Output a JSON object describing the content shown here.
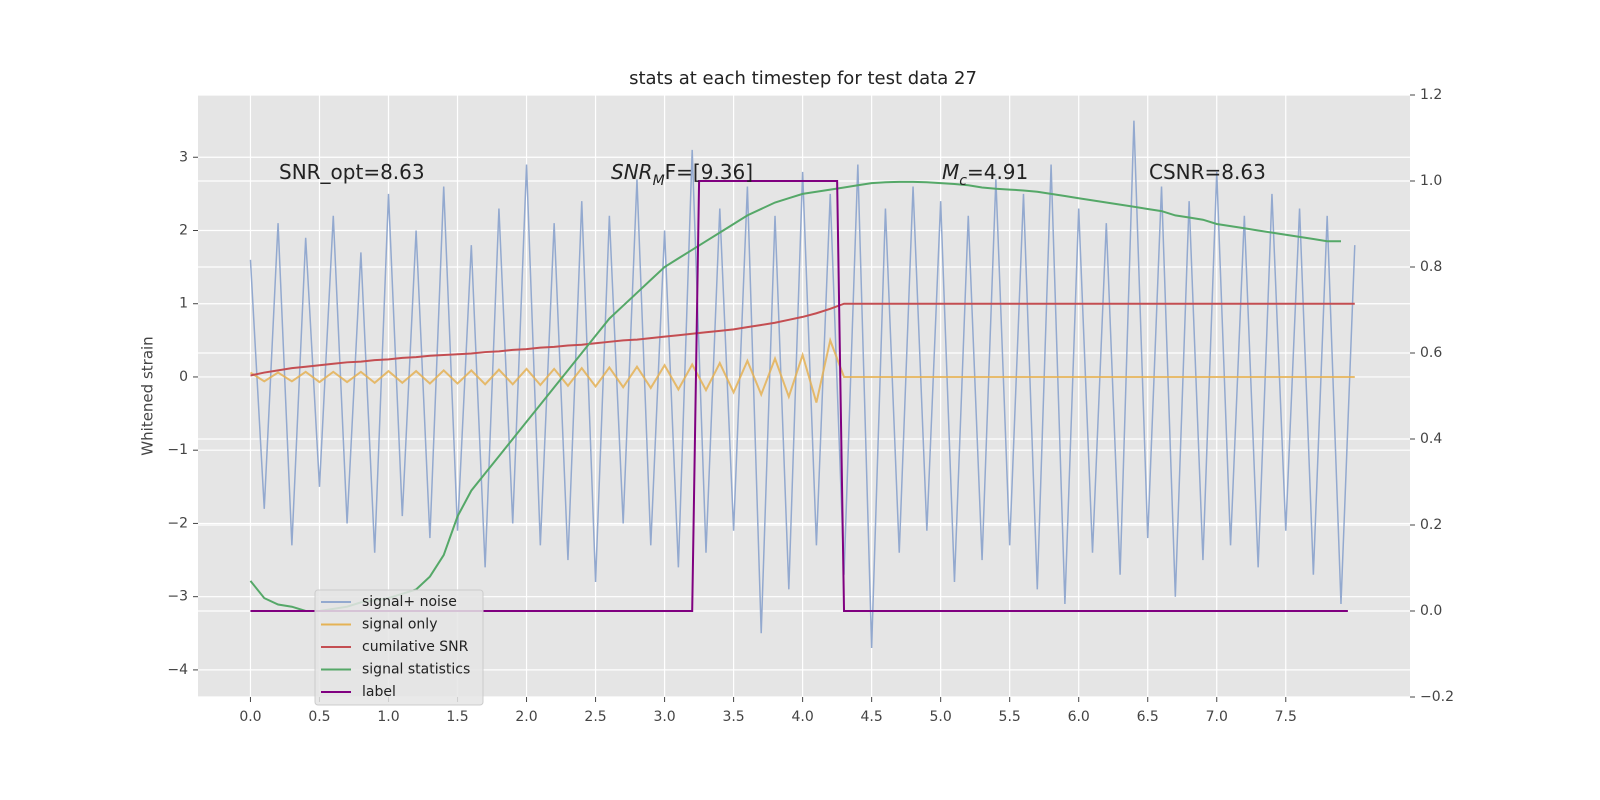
{
  "chart_data": {
    "type": "line",
    "title": "stats at each timestep for test data 27",
    "ylabel": "Whitened strain",
    "annotations": [
      [
        "SNR_opt=8.63"
      ],
      [
        "SNR",
        "M",
        "F=[9.36]"
      ],
      [
        "M",
        "c",
        "=4.91"
      ],
      [
        "CSNR=8.63"
      ]
    ],
    "x": [
      0,
      0.1,
      0.2,
      0.3,
      0.4,
      0.5,
      0.6,
      0.7,
      0.8,
      0.9,
      1,
      1.1,
      1.2,
      1.3,
      1.4,
      1.5,
      1.6,
      1.7,
      1.8,
      1.9,
      2,
      2.1,
      2.2,
      2.3,
      2.4,
      2.5,
      2.6,
      2.7,
      2.8,
      2.9,
      3,
      3.1,
      3.2,
      3.3,
      3.4,
      3.5,
      3.6,
      3.7,
      3.8,
      3.9,
      4,
      4.1,
      4.2,
      4.3,
      4.4,
      4.5,
      4.6,
      4.7,
      4.8,
      4.9,
      5,
      5.1,
      5.2,
      5.3,
      5.4,
      5.5,
      5.6,
      5.7,
      5.8,
      5.9,
      6,
      6.1,
      6.2,
      6.3,
      6.4,
      6.5,
      6.6,
      6.7,
      6.8,
      6.9,
      7,
      7.1,
      7.2,
      7.3,
      7.4,
      7.5,
      7.6,
      7.7,
      7.8,
      7.9,
      8
    ],
    "series": [
      {
        "name": "signal+ noise",
        "color": "#93a9cf",
        "values": [
          1.6,
          -1.8,
          2.1,
          -2.3,
          1.9,
          -1.5,
          2.2,
          -2.0,
          1.7,
          -2.4,
          2.5,
          -1.9,
          2.0,
          -2.2,
          2.6,
          -2.1,
          1.8,
          -2.6,
          2.3,
          -2.0,
          2.9,
          -2.3,
          2.1,
          -2.5,
          2.4,
          -2.8,
          2.2,
          -2.0,
          2.7,
          -2.3,
          2.0,
          -2.6,
          3.1,
          -2.4,
          2.3,
          -2.1,
          2.6,
          -3.5,
          2.2,
          -2.9,
          2.8,
          -2.3,
          2.5,
          -2.7,
          2.9,
          -3.7,
          2.3,
          -2.4,
          2.6,
          -2.1,
          2.4,
          -2.8,
          2.2,
          -2.5,
          2.7,
          -2.3,
          2.5,
          -2.9,
          2.9,
          -3.1,
          2.3,
          -2.4,
          2.1,
          -2.7,
          3.5,
          -2.2,
          2.6,
          -3.0,
          2.4,
          -2.5,
          2.8,
          -2.3,
          2.2,
          -2.6,
          2.5,
          -2.1,
          2.3,
          -2.7,
          2.2,
          -3.1,
          1.8
        ]
      },
      {
        "name": "signal only",
        "color": "#e5b255",
        "values": [
          0.06,
          -0.06,
          0.06,
          -0.06,
          0.07,
          -0.07,
          0.07,
          -0.07,
          0.07,
          -0.08,
          0.08,
          -0.08,
          0.08,
          -0.09,
          0.09,
          -0.09,
          0.09,
          -0.1,
          0.1,
          -0.1,
          0.11,
          -0.11,
          0.11,
          -0.12,
          0.12,
          -0.13,
          0.13,
          -0.14,
          0.14,
          -0.15,
          0.16,
          -0.17,
          0.17,
          -0.18,
          0.19,
          -0.21,
          0.22,
          -0.24,
          0.25,
          -0.27,
          0.3,
          -0.35,
          0.5,
          0,
          0,
          0,
          0,
          0,
          0,
          0,
          0,
          0,
          0,
          0,
          0,
          0,
          0,
          0,
          0,
          0,
          0,
          0,
          0,
          0,
          0,
          0,
          0,
          0,
          0,
          0,
          0,
          0,
          0,
          0,
          0,
          0,
          0,
          0,
          0,
          0,
          0
        ]
      },
      {
        "name": "cumilative SNR",
        "color": "#c44e52",
        "values": [
          0.02,
          0.06,
          0.09,
          0.12,
          0.14,
          0.16,
          0.18,
          0.2,
          0.21,
          0.23,
          0.24,
          0.26,
          0.27,
          0.29,
          0.3,
          0.31,
          0.32,
          0.34,
          0.35,
          0.37,
          0.38,
          0.4,
          0.41,
          0.43,
          0.44,
          0.46,
          0.48,
          0.5,
          0.51,
          0.53,
          0.55,
          0.57,
          0.59,
          0.61,
          0.63,
          0.65,
          0.68,
          0.71,
          0.74,
          0.78,
          0.82,
          0.87,
          0.93,
          1.0,
          1.0,
          1.0,
          1.0,
          1.0,
          1.0,
          1.0,
          1.0,
          1.0,
          1.0,
          1.0,
          1.0,
          1.0,
          1.0,
          1.0,
          1.0,
          1.0,
          1.0,
          1.0,
          1.0,
          1.0,
          1.0,
          1.0,
          1.0,
          1.0,
          1.0,
          1.0,
          1.0,
          1.0,
          1.0,
          1.0,
          1.0,
          1.0,
          1.0,
          1.0,
          1.0,
          1.0,
          1.0
        ]
      },
      {
        "name": "signal statistics",
        "color": "#55a868",
        "axis": "y2",
        "values": [
          0.07,
          0.03,
          0.015,
          0.01,
          0.0,
          0.0,
          0.005,
          0.01,
          0.02,
          0.025,
          0.03,
          0.04,
          0.05,
          0.08,
          0.13,
          0.22,
          0.28,
          0.32,
          0.36,
          0.4,
          0.44,
          0.48,
          0.52,
          0.56,
          0.6,
          0.64,
          0.68,
          0.71,
          0.74,
          0.77,
          0.8,
          0.82,
          0.84,
          0.86,
          0.88,
          0.9,
          0.92,
          0.935,
          0.95,
          0.96,
          0.97,
          0.975,
          0.98,
          0.985,
          0.99,
          0.995,
          0.997,
          0.998,
          0.998,
          0.997,
          0.995,
          0.993,
          0.99,
          0.985,
          0.982,
          0.98,
          0.978,
          0.975,
          0.97,
          0.965,
          0.96,
          0.955,
          0.95,
          0.945,
          0.94,
          0.935,
          0.93,
          0.92,
          0.915,
          0.91,
          0.9,
          0.895,
          0.89,
          0.885,
          0.88,
          0.875,
          0.87,
          0.865,
          0.86,
          0.86,
          null
        ]
      },
      {
        "name": "label",
        "color": "#800080",
        "axis": "y2",
        "x": [
          0,
          3.2,
          3.25,
          4.25,
          4.3,
          7.95
        ],
        "values": [
          0,
          0,
          1,
          1,
          0,
          0
        ]
      }
    ],
    "xlim": [
      -0.38,
      8.4
    ],
    "ylim": [
      -4.37,
      3.85
    ],
    "y2lim": [
      -0.2,
      1.2
    ],
    "xticks": [
      {
        "value": 0,
        "label": "0.0"
      },
      {
        "value": 0.5,
        "label": "0.5"
      },
      {
        "value": 1,
        "label": "1.0"
      },
      {
        "value": 1.5,
        "label": "1.5"
      },
      {
        "value": 2,
        "label": "2.0"
      },
      {
        "value": 2.5,
        "label": "2.5"
      },
      {
        "value": 3,
        "label": "3.0"
      },
      {
        "value": 3.5,
        "label": "3.5"
      },
      {
        "value": 4,
        "label": "4.0"
      },
      {
        "value": 4.5,
        "label": "4.5"
      },
      {
        "value": 5,
        "label": "5.0"
      },
      {
        "value": 5.5,
        "label": "5.5"
      },
      {
        "value": 6,
        "label": "6.0"
      },
      {
        "value": 6.5,
        "label": "6.5"
      },
      {
        "value": 7,
        "label": "7.0"
      },
      {
        "value": 7.5,
        "label": "7.5"
      }
    ],
    "yticks": [
      {
        "value": -4,
        "label": "−4"
      },
      {
        "value": -3,
        "label": "−3"
      },
      {
        "value": -2,
        "label": "−2"
      },
      {
        "value": -1,
        "label": "−1"
      },
      0,
      1,
      2,
      3
    ],
    "y2ticks": [
      {
        "value": -0.2,
        "label": "−0.2"
      },
      {
        "value": 0,
        "label": "0.0"
      },
      {
        "value": 0.2,
        "label": "0.2"
      },
      {
        "value": 0.4,
        "label": "0.4"
      },
      {
        "value": 0.6,
        "label": "0.6"
      },
      {
        "value": 0.8,
        "label": "0.8"
      },
      {
        "value": 1,
        "label": "1.0"
      },
      {
        "value": 1.2,
        "label": "1.2"
      }
    ],
    "grid": true,
    "legend": "lower left"
  }
}
